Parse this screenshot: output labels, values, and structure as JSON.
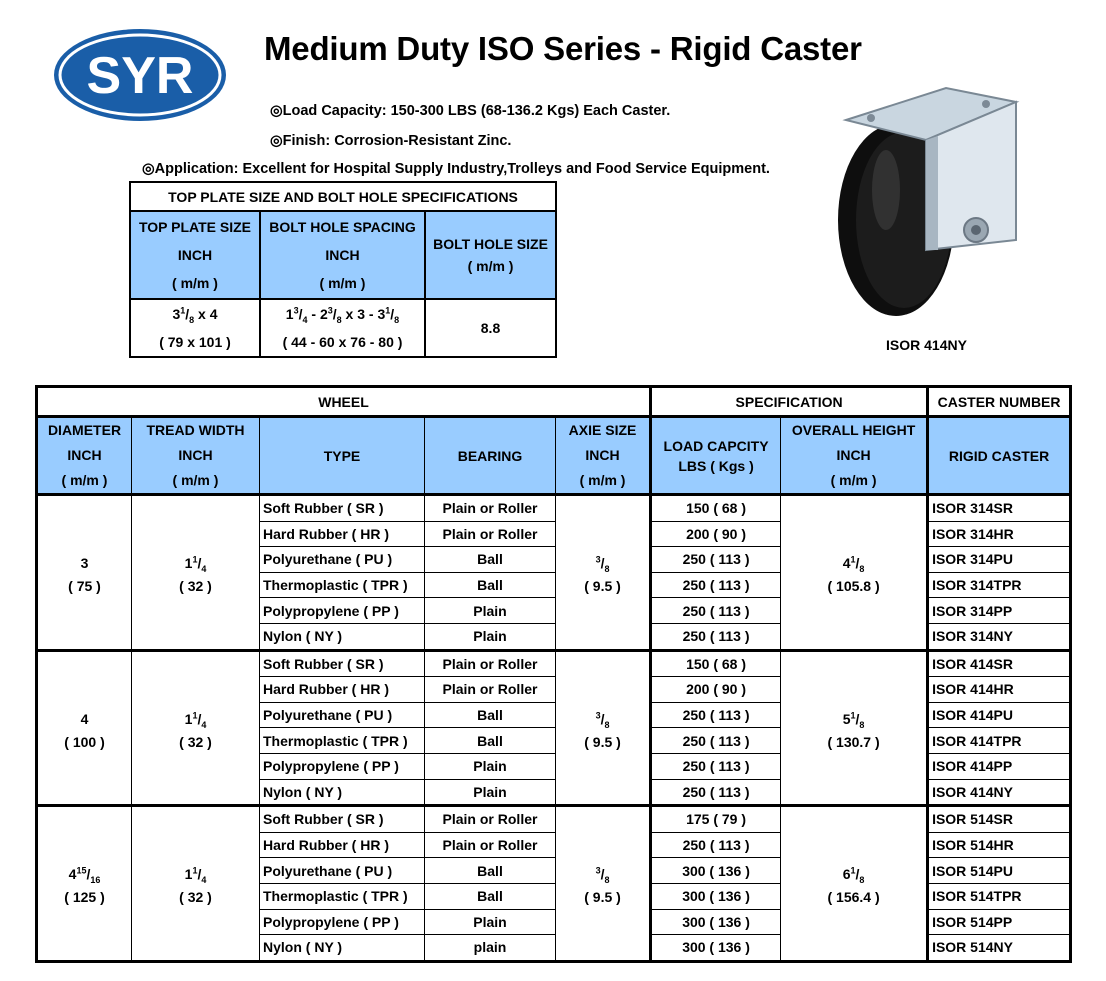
{
  "logo": {
    "text": "SYR",
    "color": "#1a5ea8"
  },
  "title": "Medium Duty ISO Series - Rigid Caster",
  "bullets": [
    "◎Load Capacity: 150-300 LBS (68-136.2 Kgs) Each Caster.",
    "◎Finish: Corrosion-Resistant Zinc.",
    "◎Application: Excellent for Hospital Supply Industry,Trolleys and Food Service Equipment."
  ],
  "photo_caption": "ISOR 414NY",
  "top_plate": {
    "title": "TOP PLATE SIZE AND BOLT HOLE SPECIFICATIONS",
    "col1": [
      "TOP PLATE SIZE",
      "INCH",
      "( m/m )"
    ],
    "col2": [
      "BOLT HOLE SPACING",
      "INCH",
      "( m/m )"
    ],
    "col3": [
      "BOLT HOLE SIZE",
      "( m/m )"
    ],
    "plate_inch": {
      "whole": "3",
      "num": "1",
      "den": "8",
      "rest": " x 4"
    },
    "plate_mm": "( 79 x 101 )",
    "spacing_mm": "( 44 - 60 x 76 - 80 )",
    "hole_size": "8.8"
  },
  "main": {
    "group_wheel": "WHEEL",
    "group_spec": "SPECIFICATION",
    "group_caster": "CASTER NUMBER",
    "h_diameter": [
      "DIAMETER",
      "INCH",
      "( m/m )"
    ],
    "h_tread": [
      "TREAD WIDTH",
      "INCH",
      "( m/m )"
    ],
    "h_type": "TYPE",
    "h_bearing": "BEARING",
    "h_axle": [
      "AXIE SIZE",
      "INCH",
      "( m/m )"
    ],
    "h_load": [
      "LOAD CAPCITY",
      "LBS ( Kgs )"
    ],
    "h_height": [
      "OVERALL HEIGHT",
      "INCH",
      "( m/m )"
    ],
    "h_rigid": "RIGID CASTER",
    "groups": [
      {
        "diameter": {
          "whole": "3",
          "num": "",
          "den": "",
          "mm": "( 75 )"
        },
        "tread": {
          "whole": "1",
          "num": "1",
          "den": "4",
          "mm": "( 32 )"
        },
        "axle": {
          "num": "3",
          "den": "8",
          "mm": "( 9.5 )"
        },
        "height": {
          "whole": "4",
          "num": "1",
          "den": "8",
          "mm": "( 105.8 )"
        },
        "rows": [
          {
            "type": "Soft Rubber ( SR )",
            "bearing": "Plain or Roller",
            "load": "150 ( 68 )",
            "part": "ISOR 314SR"
          },
          {
            "type": "Hard Rubber ( HR )",
            "bearing": "Plain or Roller",
            "load": "200 ( 90 )",
            "part": "ISOR 314HR"
          },
          {
            "type": "Polyurethane ( PU )",
            "bearing": "Ball",
            "load": "250 ( 113 )",
            "part": "ISOR 314PU"
          },
          {
            "type": "Thermoplastic ( TPR )",
            "bearing": "Ball",
            "load": "250 ( 113 )",
            "part": "ISOR 314TPR"
          },
          {
            "type": "Polypropylene ( PP )",
            "bearing": "Plain",
            "load": "250 ( 113 )",
            "part": "ISOR 314PP"
          },
          {
            "type": "Nylon ( NY )",
            "bearing": "Plain",
            "load": "250 ( 113 )",
            "part": "ISOR 314NY"
          }
        ]
      },
      {
        "diameter": {
          "whole": "4",
          "num": "",
          "den": "",
          "mm": "( 100 )"
        },
        "tread": {
          "whole": "1",
          "num": "1",
          "den": "4",
          "mm": "( 32 )"
        },
        "axle": {
          "num": "3",
          "den": "8",
          "mm": "( 9.5 )"
        },
        "height": {
          "whole": "5",
          "num": "1",
          "den": "8",
          "mm": "( 130.7 )"
        },
        "rows": [
          {
            "type": "Soft Rubber ( SR )",
            "bearing": "Plain or Roller",
            "load": "150 ( 68 )",
            "part": "ISOR 414SR"
          },
          {
            "type": "Hard Rubber ( HR )",
            "bearing": "Plain or Roller",
            "load": "200 ( 90 )",
            "part": "ISOR 414HR"
          },
          {
            "type": "Polyurethane ( PU )",
            "bearing": "Ball",
            "load": "250 ( 113 )",
            "part": "ISOR 414PU"
          },
          {
            "type": "Thermoplastic ( TPR )",
            "bearing": "Ball",
            "load": "250 ( 113 )",
            "part": "ISOR 414TPR"
          },
          {
            "type": "Polypropylene ( PP )",
            "bearing": "Plain",
            "load": "250 ( 113 )",
            "part": "ISOR 414PP"
          },
          {
            "type": "Nylon ( NY )",
            "bearing": "Plain",
            "load": "250 ( 113 )",
            "part": "ISOR 414NY"
          }
        ]
      },
      {
        "diameter": {
          "whole": "4",
          "num": "15",
          "den": "16",
          "mm": "( 125 )"
        },
        "tread": {
          "whole": "1",
          "num": "1",
          "den": "4",
          "mm": "( 32 )"
        },
        "axle": {
          "num": "3",
          "den": "8",
          "mm": "( 9.5 )"
        },
        "height": {
          "whole": "6",
          "num": "1",
          "den": "8",
          "mm": "( 156.4 )"
        },
        "rows": [
          {
            "type": "Soft Rubber ( SR )",
            "bearing": "Plain or Roller",
            "load": "175 ( 79 )",
            "part": "ISOR 514SR"
          },
          {
            "type": "Hard Rubber ( HR )",
            "bearing": "Plain or Roller",
            "load": "250 ( 113 )",
            "part": "ISOR 514HR"
          },
          {
            "type": "Polyurethane ( PU )",
            "bearing": "Ball",
            "load": "300 ( 136 )",
            "part": "ISOR 514PU"
          },
          {
            "type": "Thermoplastic ( TPR )",
            "bearing": "Ball",
            "load": "300 ( 136 )",
            "part": "ISOR 514TPR"
          },
          {
            "type": "Polypropylene ( PP )",
            "bearing": "Plain",
            "load": "300 ( 136 )",
            "part": "ISOR 514PP"
          },
          {
            "type": "Nylon ( NY )",
            "bearing": "plain",
            "load": "300 ( 136 )",
            "part": "ISOR 514NY"
          }
        ]
      }
    ]
  }
}
